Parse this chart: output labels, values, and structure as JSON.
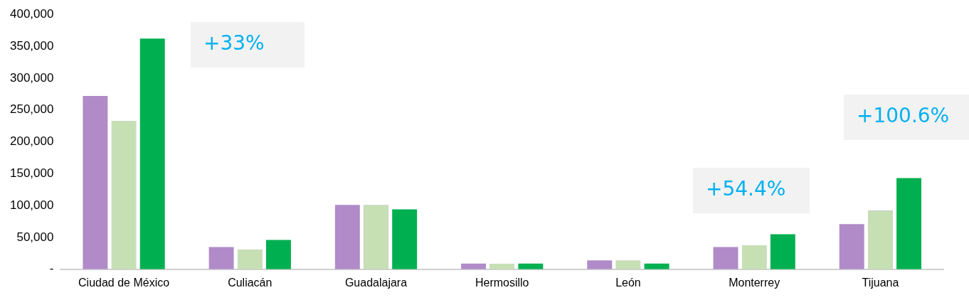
{
  "chart_data": {
    "type": "bar",
    "categories": [
      "Ciudad de México",
      "Culiacán",
      "Guadalajara",
      "Hermosillo",
      "León",
      "Monterrey",
      "Tijuana"
    ],
    "series": [
      {
        "color": "#b08bc8",
        "values": [
          272000,
          35000,
          101000,
          9000,
          14000,
          35000,
          71000
        ]
      },
      {
        "color": "#c6e0b4",
        "values": [
          233000,
          31000,
          101000,
          9000,
          14000,
          38000,
          92000
        ]
      },
      {
        "color": "#00b050",
        "values": [
          362000,
          46000,
          94000,
          9000,
          9000,
          55000,
          143000
        ]
      }
    ],
    "ylim": [
      0,
      400000
    ],
    "yticks": [
      {
        "value": 0,
        "label": "-"
      },
      {
        "value": 50000,
        "label": "50,000"
      },
      {
        "value": 100000,
        "label": "100,000"
      },
      {
        "value": 150000,
        "label": "150,000"
      },
      {
        "value": 200000,
        "label": "200,000"
      },
      {
        "value": 250000,
        "label": "250,000"
      },
      {
        "value": 300000,
        "label": "300,000"
      },
      {
        "value": 350000,
        "label": "350,000"
      },
      {
        "value": 400000,
        "label": "400,000"
      }
    ],
    "grid": false,
    "legend": false,
    "annotations": [
      "+33%",
      "+54.4%",
      "+100.6%"
    ]
  }
}
